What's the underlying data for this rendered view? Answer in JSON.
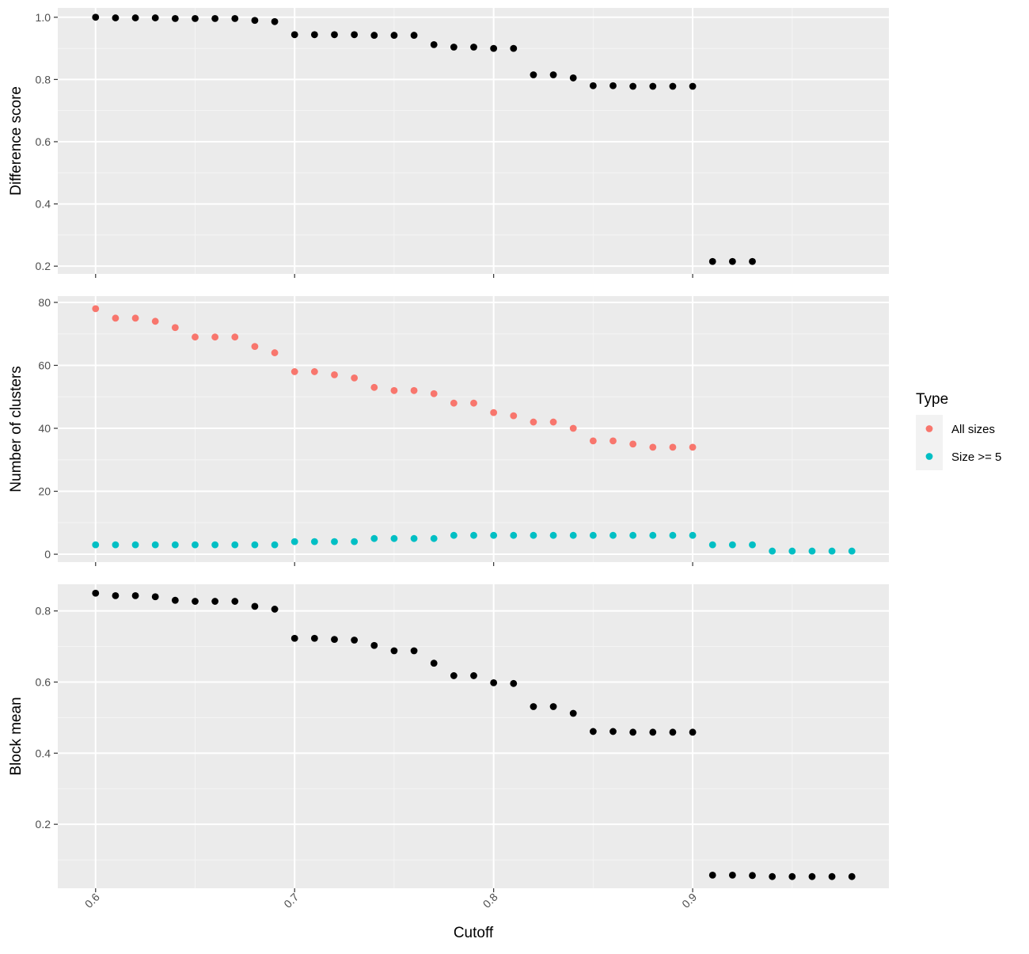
{
  "chart_data": [
    {
      "type": "scatter",
      "panel": "difference-score",
      "ylabel": "Difference score",
      "xlabel": "",
      "xlim": [
        0.581,
        0.9986
      ],
      "ylim": [
        0.175,
        1.03
      ],
      "yticks": [
        0.2,
        0.4,
        0.6,
        0.8,
        1.0
      ],
      "ytick_labels": [
        "0.2",
        "0.4",
        "0.6",
        "0.8",
        "1.0"
      ],
      "grid": true,
      "series": [
        {
          "color": "#000000",
          "x": [
            0.6,
            0.61,
            0.62,
            0.63,
            0.64,
            0.65,
            0.66,
            0.67,
            0.68,
            0.69,
            0.7,
            0.71,
            0.72,
            0.73,
            0.74,
            0.75,
            0.76,
            0.77,
            0.78,
            0.79,
            0.8,
            0.81,
            0.82,
            0.83,
            0.84,
            0.85,
            0.86,
            0.87,
            0.88,
            0.89,
            0.9,
            0.91,
            0.92,
            0.93
          ],
          "y": [
            1.0,
            0.998,
            0.998,
            0.998,
            0.996,
            0.996,
            0.996,
            0.996,
            0.99,
            0.986,
            0.944,
            0.944,
            0.944,
            0.944,
            0.942,
            0.942,
            0.942,
            0.912,
            0.904,
            0.904,
            0.9,
            0.9,
            0.815,
            0.815,
            0.805,
            0.78,
            0.78,
            0.778,
            0.778,
            0.778,
            0.778,
            0.215,
            0.215,
            0.215
          ]
        }
      ]
    },
    {
      "type": "scatter",
      "panel": "number-of-clusters",
      "ylabel": "Number of clusters",
      "xlabel": "",
      "xlim": [
        0.581,
        0.9986
      ],
      "ylim": [
        -2.5,
        82.0
      ],
      "yticks": [
        0,
        20,
        40,
        60,
        80
      ],
      "ytick_labels": [
        "0",
        "20",
        "40",
        "60",
        "80"
      ],
      "grid": true,
      "legend": {
        "title": "Type",
        "placement": "right",
        "entries": [
          {
            "label": "All sizes",
            "color": "#F8766D"
          },
          {
            "label": "Size >= 5",
            "color": "#00BFC4"
          }
        ]
      },
      "series": [
        {
          "name": "All sizes",
          "color": "#F8766D",
          "x": [
            0.6,
            0.61,
            0.62,
            0.63,
            0.64,
            0.65,
            0.66,
            0.67,
            0.68,
            0.69,
            0.7,
            0.71,
            0.72,
            0.73,
            0.74,
            0.75,
            0.76,
            0.77,
            0.78,
            0.79,
            0.8,
            0.81,
            0.82,
            0.83,
            0.84,
            0.85,
            0.86,
            0.87,
            0.88,
            0.89,
            0.9
          ],
          "y": [
            78,
            75,
            75,
            74,
            72,
            69,
            69,
            69,
            66,
            64,
            58,
            58,
            57,
            56,
            53,
            52,
            52,
            51,
            48,
            48,
            45,
            44,
            42,
            42,
            40,
            36,
            36,
            35,
            34,
            34,
            34
          ]
        },
        {
          "name": "Size >= 5",
          "color": "#00BFC4",
          "x": [
            0.6,
            0.61,
            0.62,
            0.63,
            0.64,
            0.65,
            0.66,
            0.67,
            0.68,
            0.69,
            0.7,
            0.71,
            0.72,
            0.73,
            0.74,
            0.75,
            0.76,
            0.77,
            0.78,
            0.79,
            0.8,
            0.81,
            0.82,
            0.83,
            0.84,
            0.85,
            0.86,
            0.87,
            0.88,
            0.89,
            0.9,
            0.91,
            0.92,
            0.93,
            0.94,
            0.95,
            0.96,
            0.97,
            0.98
          ],
          "y": [
            3,
            3,
            3,
            3,
            3,
            3,
            3,
            3,
            3,
            3,
            4,
            4,
            4,
            4,
            5,
            5,
            5,
            5,
            6,
            6,
            6,
            6,
            6,
            6,
            6,
            6,
            6,
            6,
            6,
            6,
            6,
            3,
            3,
            3,
            1,
            1,
            1,
            1,
            1
          ]
        }
      ]
    },
    {
      "type": "scatter",
      "panel": "block-mean",
      "ylabel": "Block mean",
      "xlabel": "Cutoff",
      "xlim": [
        0.581,
        0.9986
      ],
      "ylim": [
        0.02,
        0.875
      ],
      "yticks": [
        0.2,
        0.4,
        0.6,
        0.8
      ],
      "ytick_labels": [
        "0.2",
        "0.4",
        "0.6",
        "0.8"
      ],
      "xticks": [
        0.6,
        0.7,
        0.8,
        0.9
      ],
      "xtick_labels": [
        "0.6",
        "0.7",
        "0.8",
        "0.9"
      ],
      "grid": true,
      "series": [
        {
          "color": "#000000",
          "x": [
            0.6,
            0.61,
            0.62,
            0.63,
            0.64,
            0.65,
            0.66,
            0.67,
            0.68,
            0.69,
            0.7,
            0.71,
            0.72,
            0.73,
            0.74,
            0.75,
            0.76,
            0.77,
            0.78,
            0.79,
            0.8,
            0.81,
            0.82,
            0.83,
            0.84,
            0.85,
            0.86,
            0.87,
            0.88,
            0.89,
            0.9,
            0.91,
            0.92,
            0.93,
            0.94,
            0.95,
            0.96,
            0.97,
            0.98
          ],
          "y": [
            0.85,
            0.843,
            0.843,
            0.84,
            0.83,
            0.827,
            0.827,
            0.827,
            0.813,
            0.805,
            0.723,
            0.723,
            0.72,
            0.718,
            0.703,
            0.688,
            0.688,
            0.653,
            0.618,
            0.618,
            0.598,
            0.596,
            0.531,
            0.531,
            0.512,
            0.461,
            0.461,
            0.459,
            0.459,
            0.459,
            0.459,
            0.057,
            0.057,
            0.056,
            0.053,
            0.053,
            0.053,
            0.053,
            0.053
          ]
        }
      ]
    }
  ]
}
